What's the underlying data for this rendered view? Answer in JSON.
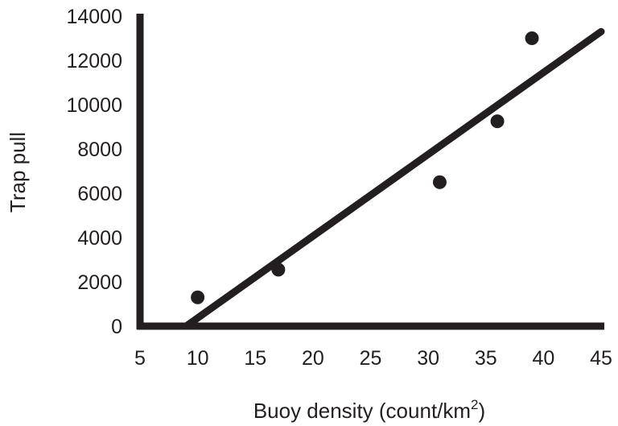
{
  "chart_data": {
    "type": "scatter",
    "xlabel": "Buoy density (count/km",
    "xlabel_superscript": "2",
    "xlabel_suffix": ")",
    "ylabel": "Trap pull",
    "xlim": [
      5,
      45
    ],
    "ylim": [
      0,
      14000
    ],
    "x_ticks": [
      5,
      10,
      15,
      20,
      25,
      30,
      35,
      40,
      45
    ],
    "y_ticks": [
      0,
      2000,
      4000,
      6000,
      8000,
      10000,
      12000,
      14000
    ],
    "points": [
      {
        "x": 10,
        "y": 1300
      },
      {
        "x": 17,
        "y": 2550
      },
      {
        "x": 31,
        "y": 6500
      },
      {
        "x": 36,
        "y": 9250
      },
      {
        "x": 39,
        "y": 13000
      }
    ],
    "trendline": {
      "x_start": 9,
      "y_start": 0,
      "x_end": 45,
      "y_end": 13300
    },
    "grid": false,
    "legend": "none",
    "colors": {
      "ink": "#231f20",
      "background": "#ffffff"
    }
  }
}
